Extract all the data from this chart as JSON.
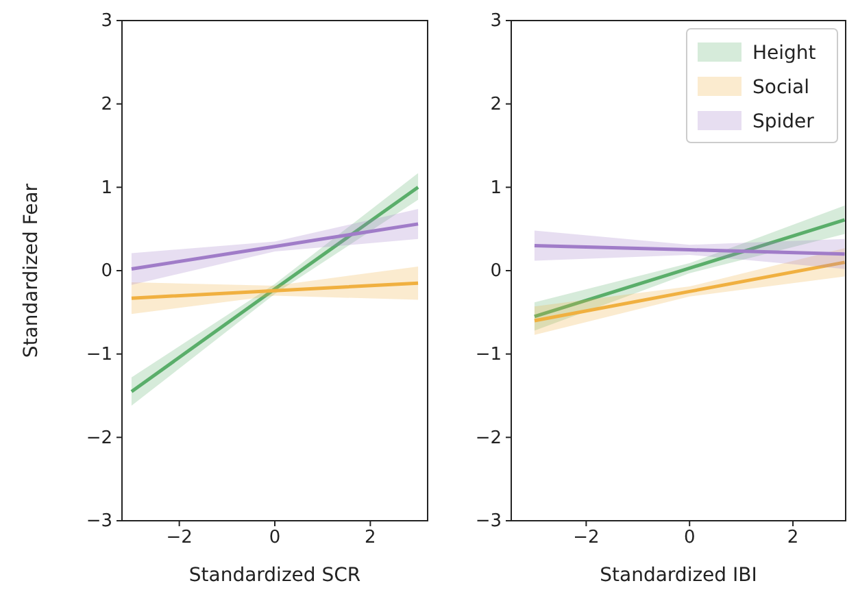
{
  "chart_data": [
    {
      "type": "line",
      "xlabel": "Standardized SCR",
      "ylabel": "Standardized Fear",
      "xlim": [
        -3.2,
        3.2
      ],
      "ylim": [
        -3,
        3
      ],
      "xticks": [
        {
          "value": -2,
          "label": "−2"
        },
        {
          "value": 0,
          "label": "0"
        },
        {
          "value": 2,
          "label": "2"
        }
      ],
      "yticks": [
        {
          "value": -3,
          "label": "−3"
        },
        {
          "value": -2,
          "label": "−2"
        },
        {
          "value": -1,
          "label": "−1"
        },
        {
          "value": 0,
          "label": "0"
        },
        {
          "value": 1,
          "label": "1"
        },
        {
          "value": 2,
          "label": "2"
        },
        {
          "value": 3,
          "label": "3"
        }
      ],
      "grid": false,
      "series": [
        {
          "color": "#5aae6a",
          "x": [
            -3,
            0,
            3
          ],
          "values": [
            -1.45,
            -0.22,
            1.0
          ],
          "lower": [
            -1.62,
            -0.28,
            0.85
          ],
          "upper": [
            -1.28,
            -0.16,
            1.17
          ]
        },
        {
          "color": "#f0b040",
          "x": [
            -3,
            0,
            3
          ],
          "values": [
            -0.33,
            -0.24,
            -0.15
          ],
          "lower": [
            -0.52,
            -0.3,
            -0.35
          ],
          "upper": [
            -0.14,
            -0.18,
            0.05
          ]
        },
        {
          "color": "#a07cc8",
          "x": [
            -3,
            0,
            3
          ],
          "values": [
            0.02,
            0.29,
            0.56
          ],
          "lower": [
            -0.17,
            0.23,
            0.38
          ],
          "upper": [
            0.21,
            0.35,
            0.74
          ]
        }
      ]
    },
    {
      "type": "line",
      "xlabel": "Standardized IBI",
      "xlim": [
        -3.45,
        3.02
      ],
      "ylim": [
        -3,
        3
      ],
      "xticks": [
        {
          "value": -2,
          "label": "−2"
        },
        {
          "value": 0,
          "label": "0"
        },
        {
          "value": 2,
          "label": "2"
        }
      ],
      "yticks": [
        {
          "value": -3,
          "label": "−3"
        },
        {
          "value": -2,
          "label": "−2"
        },
        {
          "value": -1,
          "label": "−1"
        },
        {
          "value": 0,
          "label": "0"
        },
        {
          "value": 1,
          "label": "1"
        },
        {
          "value": 2,
          "label": "2"
        },
        {
          "value": 3,
          "label": "3"
        }
      ],
      "grid": false,
      "legend": "top right",
      "series": [
        {
          "name": "Height",
          "color": "#5aae6a",
          "x": [
            -3,
            0,
            3
          ],
          "values": [
            -0.55,
            0.03,
            0.61
          ],
          "lower": [
            -0.72,
            -0.03,
            0.44
          ],
          "upper": [
            -0.38,
            0.09,
            0.78
          ]
        },
        {
          "name": "Social",
          "color": "#f0b040",
          "x": [
            -3,
            0,
            3
          ],
          "values": [
            -0.6,
            -0.25,
            0.1
          ],
          "lower": [
            -0.77,
            -0.31,
            -0.07
          ],
          "upper": [
            -0.43,
            -0.19,
            0.27
          ]
        },
        {
          "name": "Spider",
          "color": "#a07cc8",
          "x": [
            -3,
            0,
            3
          ],
          "values": [
            0.3,
            0.25,
            0.2
          ],
          "lower": [
            0.12,
            0.19,
            0.02
          ],
          "upper": [
            0.48,
            0.31,
            0.38
          ]
        }
      ]
    }
  ]
}
